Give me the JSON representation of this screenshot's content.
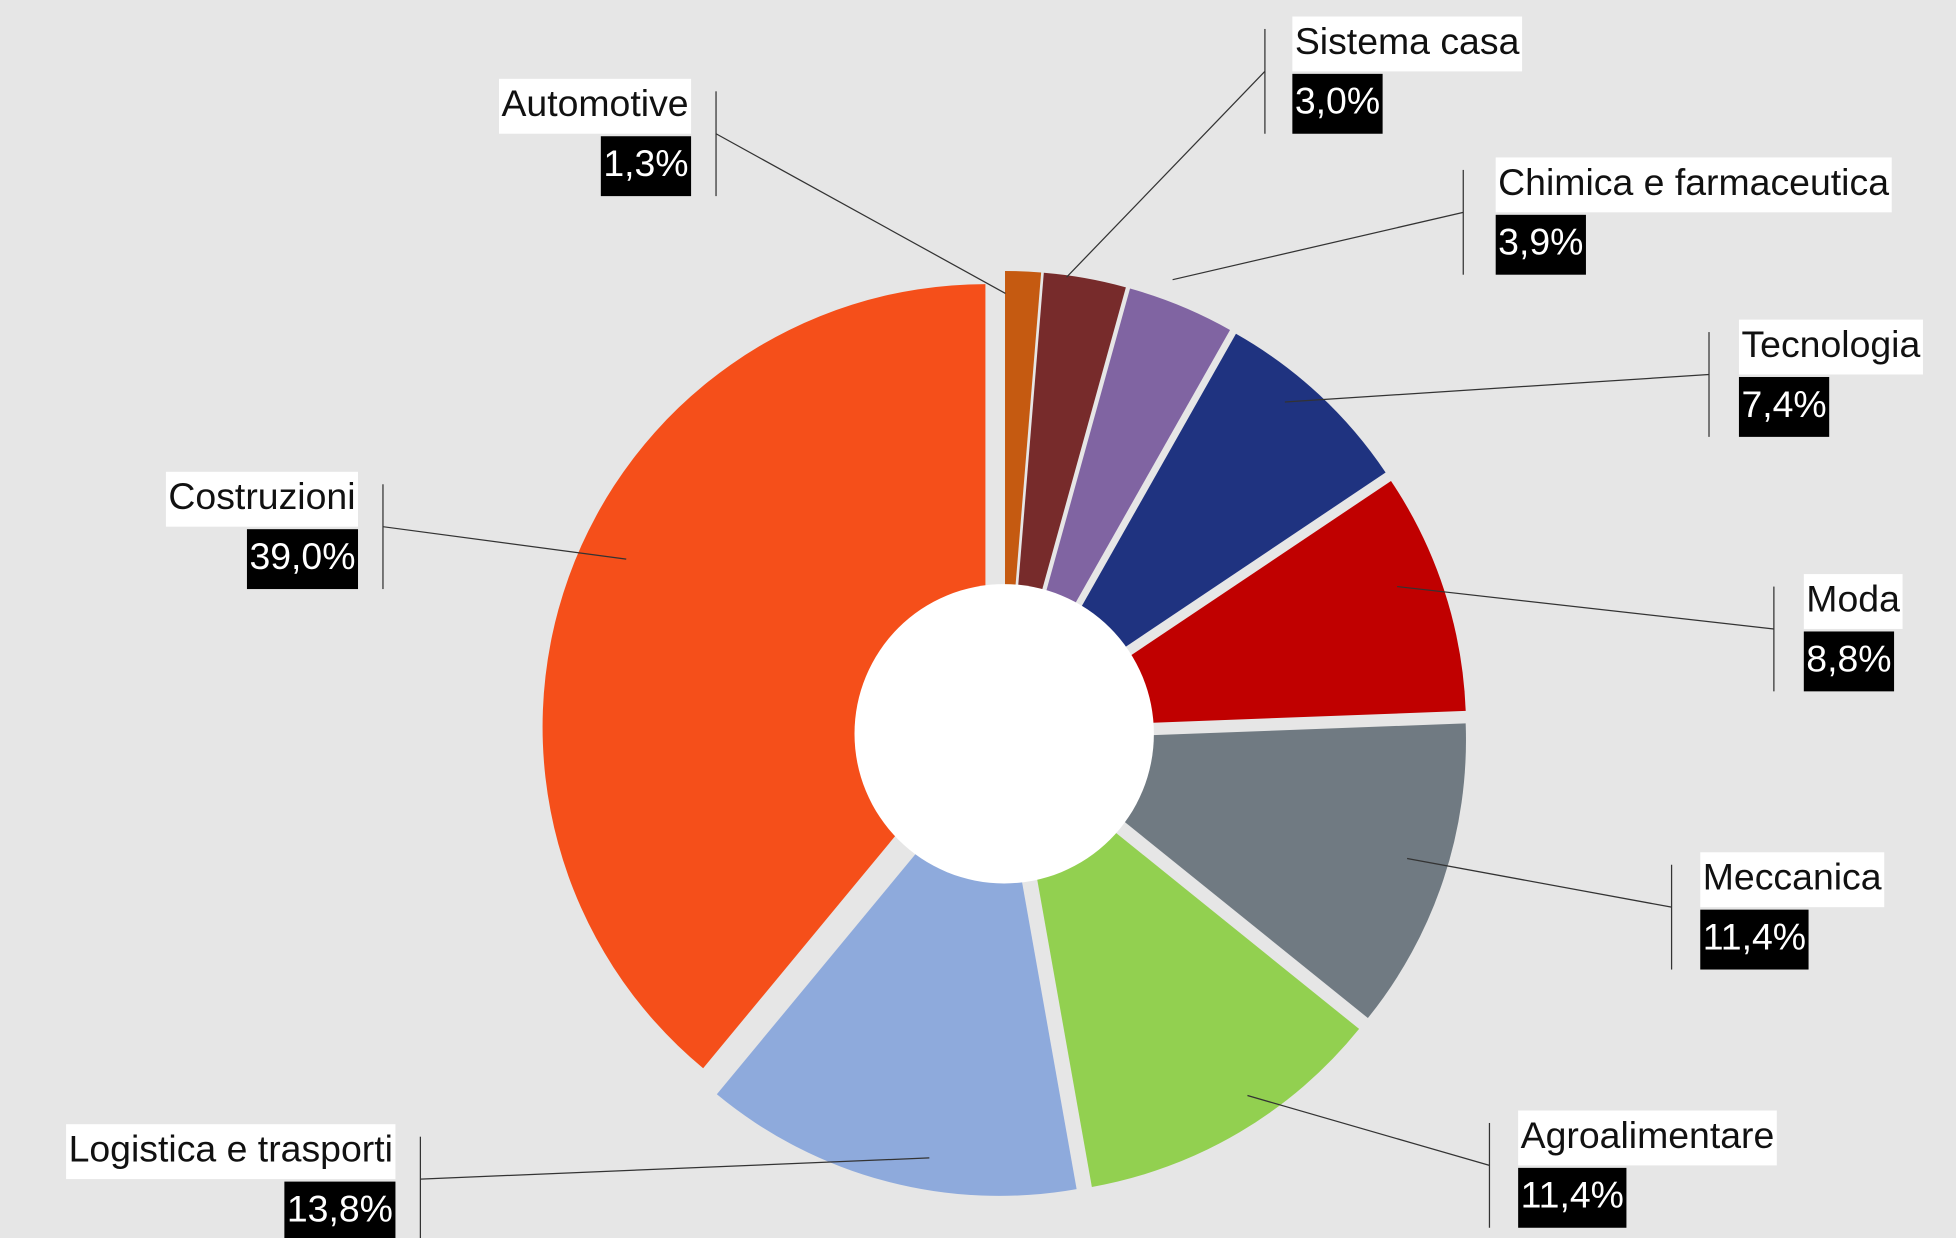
{
  "chart_data": {
    "type": "donut",
    "categories": [
      "Automotive",
      "Sistema casa",
      "Chimica e farmaceutica",
      "Tecnologia",
      "Moda",
      "Meccanica",
      "Agroalimentare",
      "Logistica e trasporti",
      "Costruzioni"
    ],
    "values": [
      1.3,
      3.0,
      3.9,
      7.4,
      8.8,
      11.4,
      11.4,
      13.8,
      39.0
    ],
    "value_labels": [
      "1,3%",
      "3,0%",
      "3,9%",
      "7,4%",
      "8,8%",
      "11,4%",
      "11,4%",
      "13,8%",
      "39,0%"
    ],
    "colors": [
      "#c55a11",
      "#772b2b",
      "#8064a2",
      "#1f3380",
      "#c00000",
      "#707a82",
      "#92d050",
      "#8eaadc",
      "#f54f1a"
    ]
  }
}
